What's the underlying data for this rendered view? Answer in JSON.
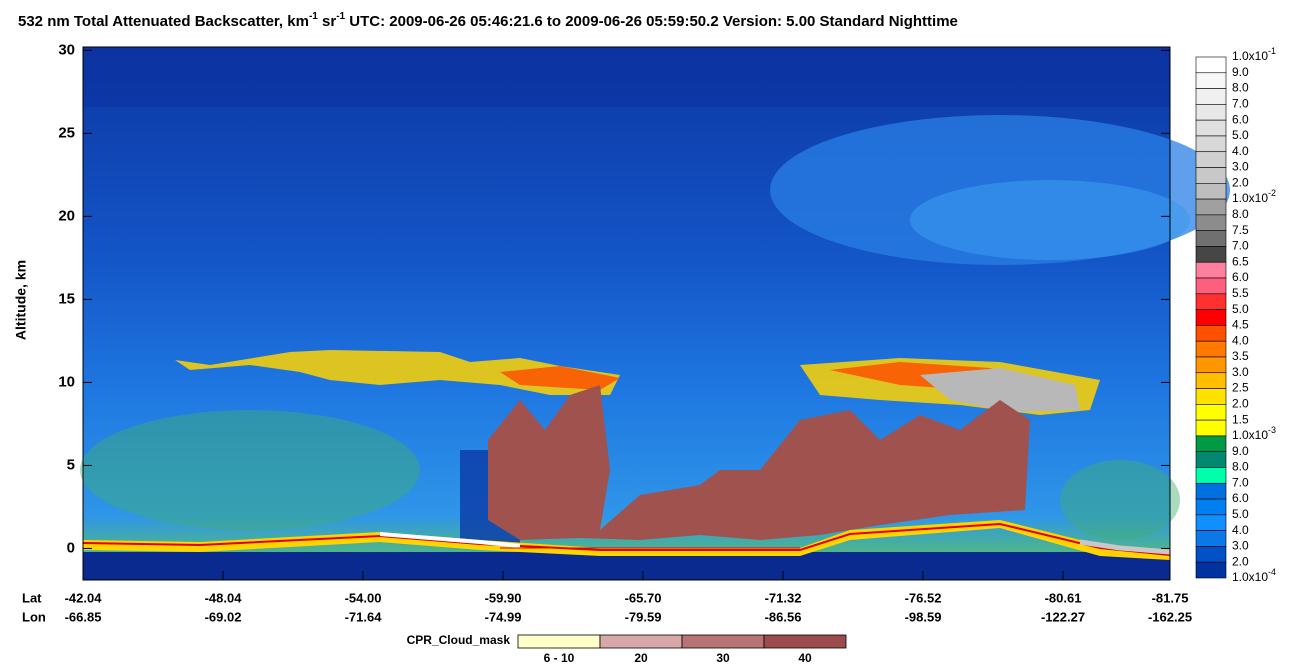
{
  "chart_data": {
    "type": "curtain",
    "title": [
      {
        "text": "532 nm Total Attenuated Backscatter, km"
      },
      {
        "text": "-1",
        "sup": true
      },
      {
        "text": " sr"
      },
      {
        "text": "-1",
        "sup": true
      },
      {
        "text": "    UTC:  2009-06-26 05:46:21.6  to  2009-06-26 05:59:50.2    Version: 5.00  Standard  Nighttime"
      }
    ],
    "ylabel": "Altitude, km",
    "ylim": [
      -1.9,
      30.2
    ],
    "yticks": [
      0,
      5,
      10,
      15,
      20,
      25,
      30
    ],
    "x_row_labels": [
      "Lat",
      "Lon"
    ],
    "lat": [
      "-42.04",
      "-48.04",
      "-54.00",
      "-59.90",
      "-65.70",
      "-71.32",
      "-76.52",
      "-80.61",
      "-81.75"
    ],
    "lon": [
      "-66.85",
      "-69.02",
      "-71.64",
      "-74.99",
      "-79.59",
      "-86.56",
      "-98.59",
      "-122.27",
      "-162.25"
    ],
    "colorbar": {
      "labels": [
        {
          "text": "1.0x10",
          "sup": "-1"
        },
        "9.0",
        "8.0",
        "7.0",
        "6.0",
        "5.0",
        "4.0",
        "3.0",
        "2.0",
        {
          "text": "1.0x10",
          "sup": "-2"
        },
        "8.0",
        "7.5",
        "7.0",
        "6.5",
        "6.0",
        "5.5",
        "5.0",
        "4.5",
        "4.0",
        "3.5",
        "3.0",
        "2.5",
        "2.0",
        "1.5",
        {
          "text": "1.0x10",
          "sup": "-3"
        },
        "9.0",
        "8.0",
        "7.0",
        "6.0",
        "5.0",
        "4.0",
        "3.0",
        "2.0",
        {
          "text": "1.0x10",
          "sup": "-4"
        }
      ],
      "colors": [
        "#ffffff",
        "#f7f7f7",
        "#f0f0f0",
        "#e8e8e8",
        "#e0e0e0",
        "#d8d8d8",
        "#d0d0d0",
        "#c8c8c8",
        "#bebebe",
        "#a0a0a0",
        "#8c8c8c",
        "#707070",
        "#464646",
        "#ff7f9f",
        "#ff5f7f",
        "#ff3030",
        "#ff0000",
        "#ff5000",
        "#ff7800",
        "#ff9600",
        "#ffbe00",
        "#ffe100",
        "#ffff00",
        "#ffff00",
        "#009944",
        "#008870",
        "#00ffaa",
        "#0070e0",
        "#0080f0",
        "#1090ff",
        "#0a78e8",
        "#0050c8",
        "#0033a0",
        "#0020a0"
      ]
    },
    "cpr_legend": {
      "title": "CPR_Cloud_mask",
      "labels": [
        "6 - 10",
        "20",
        "30",
        "40"
      ],
      "colors": [
        "#ffffc8",
        "#d8a8a8",
        "#b87474",
        "#9c4c4c"
      ]
    }
  }
}
